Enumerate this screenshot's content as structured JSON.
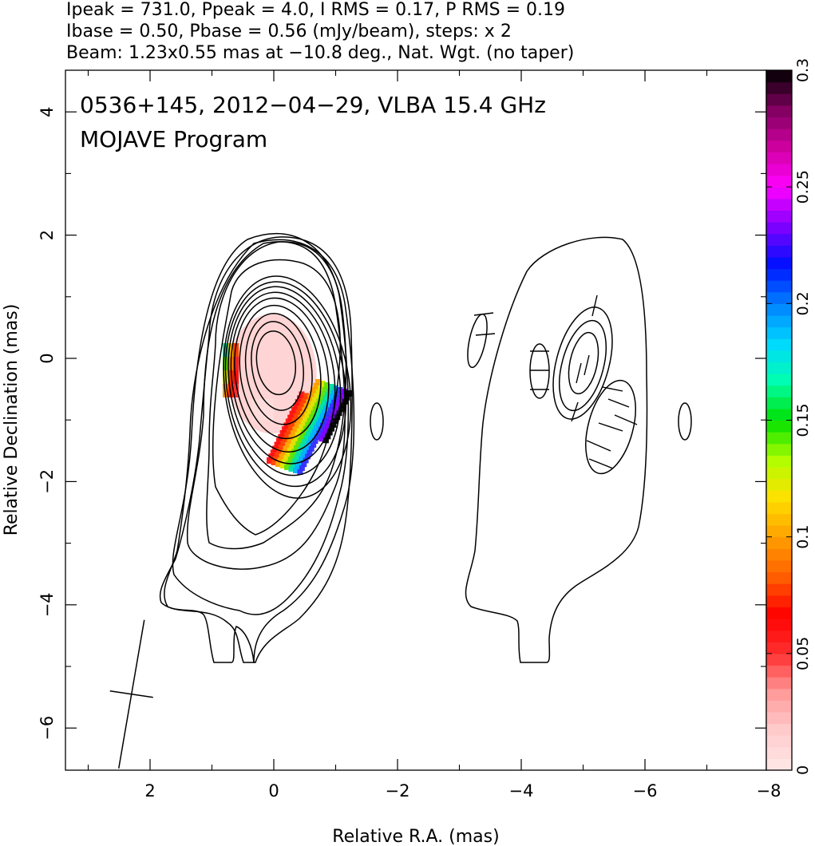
{
  "header": {
    "line1": "Ipeak = 731.0, Ppeak = 4.0, I RMS = 0.17, P RMS = 0.19",
    "line2": "Ibase = 0.50, Pbase = 0.56 (mJy/beam), steps: x 2",
    "line3": "Beam: 1.23x0.55 mas at −10.8 deg., Nat. Wgt. (no taper)"
  },
  "plot_title": {
    "line1": "0536+145, 2012−04−29, VLBA 15.4 GHz",
    "line2": "MOJAVE Program"
  },
  "chart_data": {
    "type": "contour map with polarization color overlay",
    "xlabel": "Relative R.A. (mas)",
    "ylabel": "Relative Declination (mas)",
    "xlim": [
      3.5,
      -8.0
    ],
    "ylim": [
      -6.7,
      4.7
    ],
    "x_reversed": true,
    "x_ticks": [
      2,
      0,
      -2,
      -4,
      -6,
      -8
    ],
    "x_tick_labels": [
      "2",
      "0",
      "−2",
      "−4",
      "−6",
      "−8"
    ],
    "y_ticks": [
      4,
      2,
      0,
      -2,
      -4,
      -6
    ],
    "y_tick_labels": [
      "4",
      "2",
      "0",
      "−2",
      "−4",
      "−6"
    ],
    "colorbar": {
      "min": 0,
      "max": 0.3,
      "ticks": [
        0,
        0.05,
        0.1,
        0.15,
        0.2,
        0.25,
        0.3
      ],
      "tick_labels": [
        "0",
        "0.05",
        "0.1",
        "0.15",
        "0.2",
        "0.25",
        "0.3"
      ],
      "orientation": "vertical",
      "placement": "right"
    },
    "beam": {
      "major_mas": 1.23,
      "minor_mas": 0.55,
      "pa_deg": -10.8,
      "center": [
        2.3,
        -5.45
      ]
    },
    "total_intensity_contours": {
      "base_mJy_per_beam": 0.5,
      "step_factor": 2,
      "peak_mJy_per_beam": 731.0,
      "core_center": [
        0,
        0
      ]
    },
    "polarized_intensity_contours": {
      "base_mJy_per_beam": 0.56,
      "peak_mJy_per_beam": 4.0,
      "peak_center": [
        -5.0,
        -0.2
      ],
      "x_offset_mas": -5.0
    }
  },
  "colors": {
    "contour": "#000000",
    "colormap": [
      "#ffe8e8",
      "#ffcccc",
      "#ff9a9a",
      "#ff3030",
      "#ff0000",
      "#ff6000",
      "#ffa000",
      "#ffe000",
      "#b0ff00",
      "#00e000",
      "#00ffb0",
      "#00d8ff",
      "#0080ff",
      "#0010ff",
      "#8000ff",
      "#ff00ff",
      "#d000a0",
      "#800060",
      "#000000"
    ]
  }
}
